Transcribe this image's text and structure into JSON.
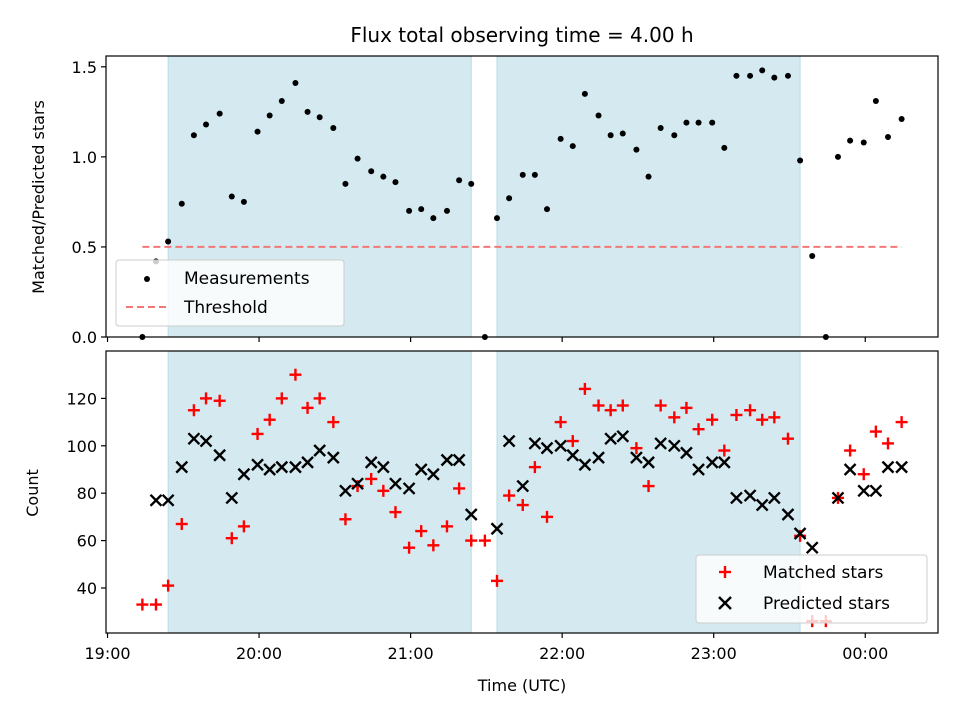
{
  "chart_data": [
    {
      "type": "scatter",
      "title": "Flux total observing time = 4.00 h",
      "xlabel": "",
      "ylabel": "Matched/Predicted stars",
      "ylim": [
        0,
        1.56
      ],
      "yticks": [
        "0.0",
        "0.5",
        "1.0",
        "1.5"
      ],
      "ytick_values": [
        0,
        0.5,
        1.0,
        1.5
      ],
      "xticks": [
        "19:00",
        "20:00",
        "21:00",
        "22:00",
        "23:00",
        "00:00"
      ],
      "xtick_values": [
        19.0,
        20.0,
        21.0,
        22.0,
        23.0,
        24.0
      ],
      "xlim": [
        18.99,
        24.48
      ],
      "shaded_intervals": [
        [
          19.4,
          21.4
        ],
        [
          21.57,
          23.57
        ]
      ],
      "shade_color": "#d4eaf0",
      "legend_placement": "lower-left",
      "series": [
        {
          "name": "Measurements",
          "marker": "dot",
          "color": "#000000",
          "points": [
            [
              19.23,
              0.0
            ],
            [
              19.32,
              0.42
            ],
            [
              19.4,
              0.53
            ],
            [
              19.49,
              0.74
            ],
            [
              19.57,
              1.12
            ],
            [
              19.65,
              1.18
            ],
            [
              19.74,
              1.24
            ],
            [
              19.82,
              0.78
            ],
            [
              19.9,
              0.75
            ],
            [
              19.99,
              1.14
            ],
            [
              20.07,
              1.23
            ],
            [
              20.15,
              1.31
            ],
            [
              20.24,
              1.41
            ],
            [
              20.32,
              1.25
            ],
            [
              20.4,
              1.22
            ],
            [
              20.49,
              1.16
            ],
            [
              20.57,
              0.85
            ],
            [
              20.65,
              0.99
            ],
            [
              20.74,
              0.92
            ],
            [
              20.82,
              0.89
            ],
            [
              20.9,
              0.86
            ],
            [
              20.99,
              0.7
            ],
            [
              21.07,
              0.71
            ],
            [
              21.15,
              0.66
            ],
            [
              21.24,
              0.7
            ],
            [
              21.32,
              0.87
            ],
            [
              21.4,
              0.85
            ],
            [
              21.49,
              0.0
            ],
            [
              21.57,
              0.66
            ],
            [
              21.65,
              0.77
            ],
            [
              21.74,
              0.9
            ],
            [
              21.82,
              0.9
            ],
            [
              21.9,
              0.71
            ],
            [
              21.99,
              1.1
            ],
            [
              22.07,
              1.06
            ],
            [
              22.15,
              1.35
            ],
            [
              22.24,
              1.23
            ],
            [
              22.32,
              1.12
            ],
            [
              22.4,
              1.13
            ],
            [
              22.49,
              1.04
            ],
            [
              22.57,
              0.89
            ],
            [
              22.65,
              1.16
            ],
            [
              22.74,
              1.12
            ],
            [
              22.82,
              1.19
            ],
            [
              22.9,
              1.19
            ],
            [
              22.99,
              1.19
            ],
            [
              23.07,
              1.05
            ],
            [
              23.15,
              1.45
            ],
            [
              23.24,
              1.45
            ],
            [
              23.32,
              1.48
            ],
            [
              23.4,
              1.44
            ],
            [
              23.49,
              1.45
            ],
            [
              23.57,
              0.98
            ],
            [
              23.65,
              0.45
            ],
            [
              23.74,
              0.0
            ],
            [
              23.82,
              1.0
            ],
            [
              23.9,
              1.09
            ],
            [
              23.99,
              1.08
            ],
            [
              24.07,
              1.31
            ],
            [
              24.15,
              1.11
            ],
            [
              24.24,
              1.21
            ]
          ]
        },
        {
          "name": "Threshold",
          "line": "dashed",
          "color": "#f47777",
          "x": [
            19.23,
            24.24
          ],
          "y": [
            0.5,
            0.5
          ]
        }
      ]
    },
    {
      "type": "scatter",
      "title": "",
      "xlabel": "Time (UTC)",
      "ylabel": "Count",
      "ylim": [
        21,
        140
      ],
      "yticks": [
        "40",
        "60",
        "80",
        "100",
        "120"
      ],
      "ytick_values": [
        40,
        60,
        80,
        100,
        120
      ],
      "xticks": [
        "19:00",
        "20:00",
        "21:00",
        "22:00",
        "23:00",
        "00:00"
      ],
      "xtick_values": [
        19.0,
        20.0,
        21.0,
        22.0,
        23.0,
        24.0
      ],
      "xlim": [
        18.99,
        24.48
      ],
      "shaded_intervals": [
        [
          19.4,
          21.4
        ],
        [
          21.57,
          23.57
        ]
      ],
      "shade_color": "#d4eaf0",
      "legend_placement": "lower-right",
      "series": [
        {
          "name": "Matched stars",
          "marker": "plus",
          "color": "#ff0000",
          "points": [
            [
              19.23,
              33
            ],
            [
              19.32,
              33
            ],
            [
              19.4,
              41
            ],
            [
              19.49,
              67
            ],
            [
              19.57,
              115
            ],
            [
              19.65,
              120
            ],
            [
              19.74,
              119
            ],
            [
              19.82,
              61
            ],
            [
              19.9,
              66
            ],
            [
              19.99,
              105
            ],
            [
              20.07,
              111
            ],
            [
              20.15,
              120
            ],
            [
              20.24,
              130
            ],
            [
              20.32,
              116
            ],
            [
              20.4,
              120
            ],
            [
              20.49,
              110
            ],
            [
              20.57,
              69
            ],
            [
              20.65,
              83
            ],
            [
              20.74,
              86
            ],
            [
              20.82,
              81
            ],
            [
              20.9,
              72
            ],
            [
              20.99,
              57
            ],
            [
              21.07,
              64
            ],
            [
              21.15,
              58
            ],
            [
              21.24,
              66
            ],
            [
              21.32,
              82
            ],
            [
              21.4,
              60
            ],
            [
              21.49,
              60
            ],
            [
              21.57,
              43
            ],
            [
              21.65,
              79
            ],
            [
              21.74,
              75
            ],
            [
              21.82,
              91
            ],
            [
              21.9,
              70
            ],
            [
              21.99,
              110
            ],
            [
              22.07,
              102
            ],
            [
              22.15,
              124
            ],
            [
              22.24,
              117
            ],
            [
              22.32,
              115
            ],
            [
              22.4,
              117
            ],
            [
              22.49,
              99
            ],
            [
              22.57,
              83
            ],
            [
              22.65,
              117
            ],
            [
              22.74,
              112
            ],
            [
              22.82,
              116
            ],
            [
              22.9,
              107
            ],
            [
              22.99,
              111
            ],
            [
              23.07,
              98
            ],
            [
              23.15,
              113
            ],
            [
              23.24,
              115
            ],
            [
              23.32,
              111
            ],
            [
              23.4,
              112
            ],
            [
              23.49,
              103
            ],
            [
              23.57,
              62
            ],
            [
              23.65,
              26
            ],
            [
              23.74,
              26
            ],
            [
              23.82,
              78
            ],
            [
              23.9,
              98
            ],
            [
              23.99,
              88
            ],
            [
              24.07,
              106
            ],
            [
              24.15,
              101
            ],
            [
              24.24,
              110
            ]
          ]
        },
        {
          "name": "Predicted stars",
          "marker": "x",
          "color": "#000000",
          "points": [
            [
              19.32,
              77
            ],
            [
              19.4,
              77
            ],
            [
              19.49,
              91
            ],
            [
              19.57,
              103
            ],
            [
              19.65,
              102
            ],
            [
              19.74,
              96
            ],
            [
              19.82,
              78
            ],
            [
              19.9,
              88
            ],
            [
              19.99,
              92
            ],
            [
              20.07,
              90
            ],
            [
              20.15,
              91
            ],
            [
              20.24,
              91
            ],
            [
              20.32,
              93
            ],
            [
              20.4,
              98
            ],
            [
              20.49,
              95
            ],
            [
              20.57,
              81
            ],
            [
              20.65,
              84
            ],
            [
              20.74,
              93
            ],
            [
              20.82,
              91
            ],
            [
              20.9,
              84
            ],
            [
              20.99,
              82
            ],
            [
              21.07,
              90
            ],
            [
              21.15,
              88
            ],
            [
              21.24,
              94
            ],
            [
              21.32,
              94
            ],
            [
              21.4,
              71
            ],
            [
              21.57,
              65
            ],
            [
              21.65,
              102
            ],
            [
              21.74,
              83
            ],
            [
              21.82,
              101
            ],
            [
              21.9,
              99
            ],
            [
              21.99,
              100
            ],
            [
              22.07,
              96
            ],
            [
              22.15,
              92
            ],
            [
              22.24,
              95
            ],
            [
              22.32,
              103
            ],
            [
              22.4,
              104
            ],
            [
              22.49,
              95
            ],
            [
              22.57,
              93
            ],
            [
              22.65,
              101
            ],
            [
              22.74,
              100
            ],
            [
              22.82,
              97
            ],
            [
              22.9,
              90
            ],
            [
              22.99,
              93
            ],
            [
              23.07,
              93
            ],
            [
              23.15,
              78
            ],
            [
              23.24,
              79
            ],
            [
              23.32,
              75
            ],
            [
              23.4,
              78
            ],
            [
              23.49,
              71
            ],
            [
              23.57,
              63
            ],
            [
              23.65,
              57
            ],
            [
              23.82,
              78
            ],
            [
              23.9,
              90
            ],
            [
              23.99,
              81
            ],
            [
              24.07,
              81
            ],
            [
              24.15,
              91
            ],
            [
              24.24,
              91
            ]
          ]
        }
      ]
    }
  ]
}
